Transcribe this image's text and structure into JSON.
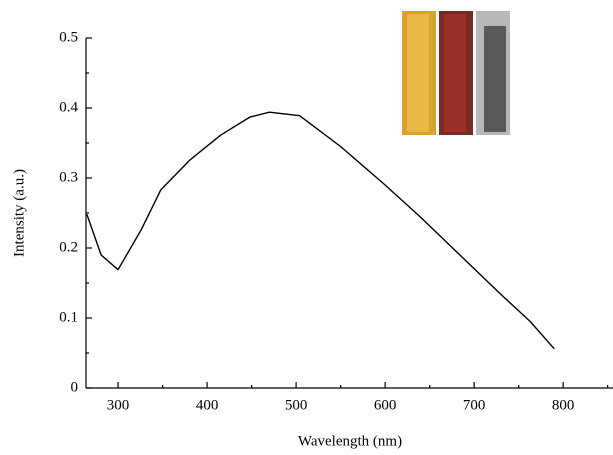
{
  "chart_data": {
    "type": "line",
    "x_label": "Wavelength (nm)",
    "y_label": "Intensity (a.u.)",
    "x": [
      265,
      281,
      300,
      326,
      348,
      381,
      415,
      448,
      470,
      504,
      550,
      600,
      639,
      684,
      729,
      763,
      790
    ],
    "series": [
      {
        "color": "#000000",
        "values": [
          0.248,
          0.19,
          0.169,
          0.226,
          0.283,
          0.326,
          0.361,
          0.387,
          0.394,
          0.389,
          0.345,
          0.29,
          0.245,
          0.19,
          0.135,
          0.095,
          0.056
        ]
      }
    ],
    "xlim": [
      264,
      856
    ],
    "xticks": [
      300,
      400,
      500,
      600,
      700,
      800
    ],
    "ylim": [
      0,
      0.5
    ],
    "yticks": [
      0,
      0.1,
      0.2,
      0.3,
      0.4,
      0.5
    ]
  }
}
